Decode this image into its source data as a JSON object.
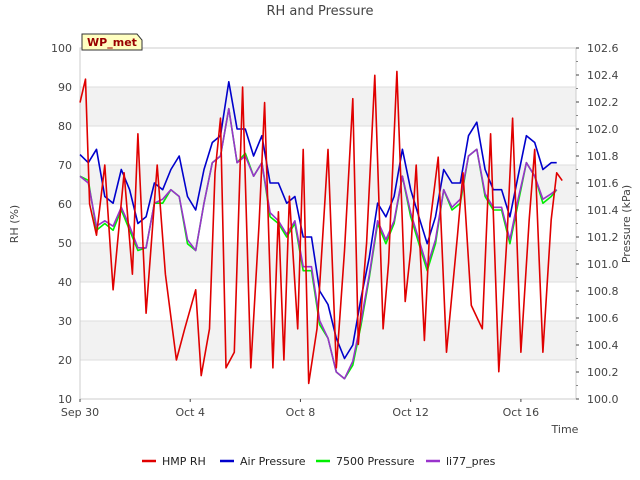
{
  "chart_data": {
    "type": "line",
    "title": "RH and Pressure",
    "xlabel": "Time",
    "ylabel_left": "RH (%)",
    "ylabel_right": "Pressure (kPa)",
    "badge": "WP_met",
    "x_ticks": [
      {
        "day": 0,
        "label": "Sep 30"
      },
      {
        "day": 4,
        "label": "Oct 4"
      },
      {
        "day": 8,
        "label": "Oct 8"
      },
      {
        "day": 12,
        "label": "Oct 12"
      },
      {
        "day": 16,
        "label": "Oct 16"
      }
    ],
    "x_range_days": [
      0,
      18
    ],
    "y_left_range": [
      10,
      100
    ],
    "y_left_ticks": [
      "10",
      "20",
      "30",
      "40",
      "50",
      "60",
      "70",
      "80",
      "90",
      "100"
    ],
    "y_right_range": [
      100.0,
      102.6
    ],
    "y_right_ticks": [
      "100.0",
      "100.2",
      "100.4",
      "100.6",
      "100.8",
      "101.0",
      "101.2",
      "101.4",
      "101.6",
      "101.8",
      "102.0",
      "102.2",
      "102.4",
      "102.6"
    ],
    "grid": "horizontal bands",
    "legend_position": "bottom",
    "series": [
      {
        "name": "HMP RH",
        "color": "#e00000",
        "axis": "left",
        "x": [
          0,
          0.2,
          0.35,
          0.6,
          0.9,
          1.2,
          1.6,
          1.9,
          2.1,
          2.4,
          2.8,
          3.1,
          3.5,
          3.8,
          4.2,
          4.4,
          4.7,
          4.9,
          5.1,
          5.3,
          5.6,
          5.9,
          6.2,
          6.5,
          6.7,
          7.0,
          7.2,
          7.4,
          7.6,
          7.9,
          8.1,
          8.3,
          8.6,
          8.9,
          9.0,
          9.3,
          9.6,
          9.9,
          10.1,
          10.4,
          10.7,
          11.0,
          11.2,
          11.5,
          11.8,
          12.0,
          12.2,
          12.5,
          12.7,
          13.0,
          13.3,
          13.7,
          13.9,
          14.2,
          14.6,
          14.9,
          15.2,
          15.5,
          15.7,
          16.0,
          16.3,
          16.5,
          16.8,
          17.1,
          17.3,
          17.5
        ],
        "y": [
          86,
          92,
          60,
          52,
          70,
          38,
          68,
          42,
          78,
          32,
          70,
          42,
          20,
          28,
          38,
          16,
          28,
          68,
          82,
          18,
          22,
          90,
          18,
          55,
          86,
          18,
          58,
          20,
          62,
          28,
          74,
          14,
          28,
          62,
          74,
          18,
          48,
          87,
          24,
          50,
          93,
          28,
          45,
          94,
          35,
          48,
          70,
          25,
          55,
          72,
          22,
          52,
          68,
          34,
          28,
          78,
          17,
          52,
          82,
          22,
          56,
          74,
          22,
          56,
          68,
          66
        ]
      },
      {
        "name": "Air Pressure",
        "color": "#0000cc",
        "axis": "right",
        "x": [
          0,
          0.3,
          0.6,
          0.9,
          1.2,
          1.5,
          1.8,
          2.1,
          2.4,
          2.7,
          3.0,
          3.3,
          3.6,
          3.9,
          4.2,
          4.5,
          4.8,
          5.1,
          5.4,
          5.7,
          6.0,
          6.3,
          6.6,
          6.9,
          7.2,
          7.5,
          7.8,
          8.1,
          8.4,
          8.7,
          9.0,
          9.3,
          9.6,
          9.9,
          10.2,
          10.5,
          10.8,
          11.1,
          11.4,
          11.7,
          12.0,
          12.3,
          12.6,
          12.9,
          13.2,
          13.5,
          13.8,
          14.1,
          14.4,
          14.7,
          15.0,
          15.3,
          15.6,
          15.9,
          16.2,
          16.5,
          16.8,
          17.1,
          17.3
        ],
        "y": [
          101.81,
          101.75,
          101.85,
          101.5,
          101.45,
          101.7,
          101.55,
          101.3,
          101.35,
          101.6,
          101.55,
          101.7,
          101.8,
          101.5,
          101.4,
          101.7,
          101.9,
          101.95,
          102.35,
          102.0,
          102.0,
          101.8,
          101.95,
          101.6,
          101.6,
          101.45,
          101.5,
          101.2,
          101.2,
          100.8,
          100.7,
          100.45,
          100.3,
          100.4,
          100.75,
          101.05,
          101.45,
          101.35,
          101.5,
          101.85,
          101.55,
          101.35,
          101.15,
          101.35,
          101.7,
          101.6,
          101.6,
          101.95,
          102.05,
          101.7,
          101.55,
          101.55,
          101.35,
          101.65,
          101.95,
          101.9,
          101.7,
          101.75,
          101.75
        ]
      },
      {
        "name": "7500 Pressure",
        "color": "#00ee00",
        "axis": "right",
        "x": [
          0,
          0.3,
          0.6,
          0.9,
          1.2,
          1.5,
          1.8,
          2.1,
          2.4,
          2.7,
          3.0,
          3.3,
          3.6,
          3.9,
          4.2,
          4.5,
          4.8,
          5.1,
          5.4,
          5.7,
          6.0,
          6.3,
          6.6,
          6.9,
          7.2,
          7.5,
          7.8,
          8.1,
          8.4,
          8.7,
          9.0,
          9.3,
          9.6,
          9.9,
          10.2,
          10.5,
          10.8,
          11.1,
          11.4,
          11.7,
          12.0,
          12.3,
          12.6,
          12.9,
          13.2,
          13.5,
          13.8,
          14.1,
          14.4,
          14.7,
          15.0,
          15.3,
          15.6,
          15.9,
          16.2,
          16.5,
          16.8,
          17.1,
          17.3
        ],
        "y": [
          101.65,
          101.62,
          101.25,
          101.3,
          101.25,
          101.4,
          101.25,
          101.1,
          101.12,
          101.45,
          101.45,
          101.55,
          101.5,
          101.15,
          101.1,
          101.45,
          101.75,
          101.8,
          102.15,
          101.75,
          101.82,
          101.65,
          101.75,
          101.35,
          101.3,
          101.2,
          101.3,
          100.95,
          100.95,
          100.55,
          100.45,
          100.2,
          100.15,
          100.25,
          100.55,
          100.9,
          101.3,
          101.15,
          101.3,
          101.65,
          101.35,
          101.15,
          100.95,
          101.15,
          101.55,
          101.4,
          101.45,
          101.8,
          101.85,
          101.5,
          101.4,
          101.4,
          101.15,
          101.45,
          101.75,
          101.65,
          101.45,
          101.5,
          101.55
        ]
      },
      {
        "name": "li77_pres",
        "color": "#9933cc",
        "axis": "right",
        "x": [
          0,
          0.3,
          0.6,
          0.9,
          1.2,
          1.5,
          1.8,
          2.1,
          2.4,
          2.7,
          3.0,
          3.3,
          3.6,
          3.9,
          4.2,
          4.5,
          4.8,
          5.1,
          5.4,
          5.7,
          6.0,
          6.3,
          6.6,
          6.9,
          7.2,
          7.5,
          7.8,
          8.1,
          8.4,
          8.7,
          9.0,
          9.3,
          9.6,
          9.9,
          10.2,
          10.5,
          10.8,
          11.1,
          11.4,
          11.7,
          12.0,
          12.3,
          12.6,
          12.9,
          13.2,
          13.5,
          13.8,
          14.1,
          14.4,
          14.7,
          15.0,
          15.3,
          15.6,
          15.9,
          16.2,
          16.5,
          16.8,
          17.1,
          17.3
        ],
        "y": [
          101.65,
          101.6,
          101.28,
          101.32,
          101.28,
          101.42,
          101.28,
          101.12,
          101.12,
          101.45,
          101.48,
          101.55,
          101.5,
          101.18,
          101.1,
          101.45,
          101.75,
          101.8,
          102.15,
          101.75,
          101.8,
          101.65,
          101.75,
          101.38,
          101.32,
          101.22,
          101.32,
          100.98,
          100.98,
          100.58,
          100.45,
          100.2,
          100.15,
          100.28,
          100.58,
          100.92,
          101.32,
          101.18,
          101.32,
          101.65,
          101.38,
          101.18,
          100.98,
          101.18,
          101.55,
          101.42,
          101.48,
          101.8,
          101.85,
          101.52,
          101.42,
          101.42,
          101.18,
          101.48,
          101.75,
          101.65,
          101.48,
          101.52,
          101.55
        ]
      }
    ]
  }
}
